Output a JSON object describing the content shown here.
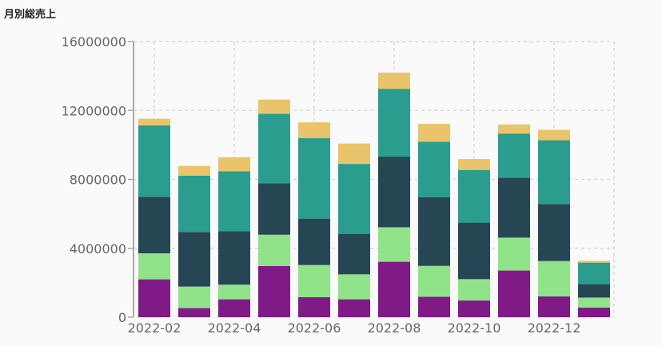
{
  "chart_data": {
    "type": "bar",
    "stacked": true,
    "title": "月別総売上",
    "xlabel": "",
    "ylabel": "",
    "ylim": [
      0,
      16000000
    ],
    "yticks": [
      "0",
      "4000000",
      "8000000",
      "12000000",
      "16000000"
    ],
    "ytick_values": [
      0,
      4000000,
      8000000,
      12000000,
      16000000
    ],
    "xtick_labels": [
      "2022-02",
      "2022-04",
      "2022-06",
      "2022-08",
      "2022-10",
      "2022-12"
    ],
    "categories": [
      "2022-02",
      "2022-03",
      "2022-04",
      "2022-05",
      "2022-06",
      "2022-07",
      "2022-08",
      "2022-09",
      "2022-10",
      "2022-11",
      "2022-12",
      "2023-01"
    ],
    "grid": true,
    "legend": "none",
    "series": [
      {
        "color": "#7f1a87",
        "values": [
          2200000,
          530000,
          1040000,
          2970000,
          1160000,
          1040000,
          3220000,
          1190000,
          970000,
          2710000,
          1210000,
          560000
        ]
      },
      {
        "color": "#90e388",
        "values": [
          1510000,
          1250000,
          850000,
          1820000,
          1870000,
          1450000,
          2000000,
          1790000,
          1240000,
          1910000,
          2050000,
          580000
        ]
      },
      {
        "color": "#264653",
        "values": [
          3280000,
          3170000,
          3100000,
          2980000,
          2690000,
          2350000,
          4100000,
          3990000,
          3280000,
          3470000,
          3310000,
          780000
        ]
      },
      {
        "color": "#2a9d8f",
        "values": [
          4140000,
          3270000,
          3480000,
          4040000,
          4680000,
          4060000,
          3940000,
          3220000,
          3060000,
          2570000,
          3700000,
          1250000
        ]
      },
      {
        "color": "#e9c46a",
        "values": [
          390000,
          560000,
          820000,
          820000,
          910000,
          1180000,
          940000,
          1030000,
          630000,
          530000,
          610000,
          110000
        ]
      }
    ]
  }
}
